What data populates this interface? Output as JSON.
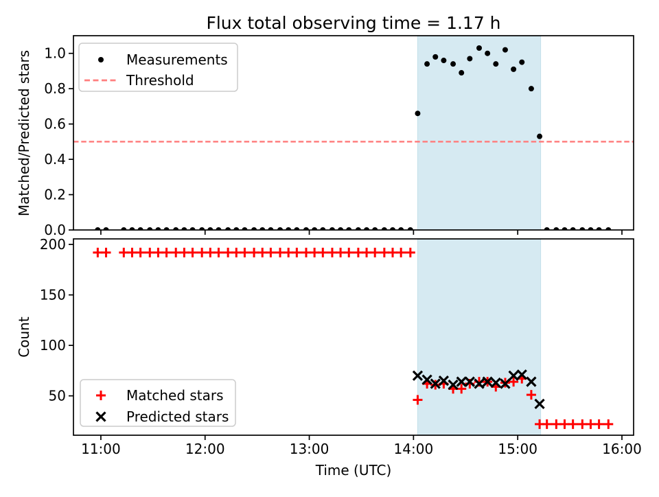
{
  "figure": {
    "title": "Flux total observing time = 1.17 h",
    "background": "#ffffff"
  },
  "colors": {
    "measurements": "#000000",
    "threshold": "#ff7f7f",
    "matched": "#ff0000",
    "predicted": "#000000",
    "shading": "#d6eaf2",
    "shading_edge": "#c3dfea",
    "legend_border": "#cccccc",
    "axes": "#000000"
  },
  "chart_data": [
    {
      "type": "scatter",
      "title": "Flux total observing time = 1.17 h",
      "ylabel": "Matched/Predicted stars",
      "xlim": [
        10.737,
        16.112
      ],
      "ylim": [
        0,
        1.1
      ],
      "yticks": [
        0.0,
        0.2,
        0.4,
        0.6,
        0.8,
        1.0
      ],
      "ytick_labels": [
        "0.0",
        "0.2",
        "0.4",
        "0.6",
        "0.8",
        "1.0"
      ],
      "xticks": [
        11,
        12,
        13,
        14,
        15,
        16
      ],
      "xtick_labels": [],
      "grid": false,
      "shaded_region": {
        "x0": 14.04,
        "x1": 15.22,
        "color": "#d6eaf2"
      },
      "threshold": {
        "y": 0.5,
        "color": "#ff7f7f",
        "style": "dashed"
      },
      "legend": {
        "position": "upper-left",
        "entries": [
          {
            "label": "Measurements",
            "marker": "dot",
            "color": "#000000"
          },
          {
            "label": "Threshold",
            "marker": "dashed-line",
            "color": "#ff7f7f"
          }
        ]
      },
      "series": [
        {
          "name": "Measurements",
          "marker": "dot",
          "color": "#000000",
          "x": [
            10.97,
            11.05,
            11.22,
            11.3,
            11.38,
            11.47,
            11.55,
            11.63,
            11.72,
            11.8,
            11.88,
            11.97,
            12.05,
            12.13,
            12.22,
            12.3,
            12.38,
            12.47,
            12.55,
            12.63,
            12.72,
            12.8,
            12.88,
            12.97,
            13.05,
            13.13,
            13.22,
            13.3,
            13.38,
            13.47,
            13.55,
            13.63,
            13.72,
            13.8,
            13.88,
            13.97,
            14.04,
            14.13,
            14.21,
            14.29,
            14.38,
            14.46,
            14.54,
            14.63,
            14.71,
            14.79,
            14.88,
            14.96,
            15.04,
            15.13,
            15.21,
            15.28,
            15.37,
            15.45,
            15.53,
            15.62,
            15.7,
            15.78,
            15.87
          ],
          "y": [
            0.0,
            0.0,
            0.0,
            0.0,
            0.0,
            0.0,
            0.0,
            0.0,
            0.0,
            0.0,
            0.0,
            0.0,
            0.0,
            0.0,
            0.0,
            0.0,
            0.0,
            0.0,
            0.0,
            0.0,
            0.0,
            0.0,
            0.0,
            0.0,
            0.0,
            0.0,
            0.0,
            0.0,
            0.0,
            0.0,
            0.0,
            0.0,
            0.0,
            0.0,
            0.0,
            0.0,
            0.66,
            0.94,
            0.98,
            0.96,
            0.94,
            0.89,
            0.97,
            1.03,
            1.0,
            0.94,
            1.02,
            0.91,
            0.95,
            0.8,
            0.53,
            0.0,
            0.0,
            0.0,
            0.0,
            0.0,
            0.0,
            0.0,
            0.0
          ]
        }
      ]
    },
    {
      "type": "scatter",
      "xlabel": "Time (UTC)",
      "ylabel": "Count",
      "xlim": [
        10.737,
        16.112
      ],
      "ylim": [
        11,
        205.5
      ],
      "yticks": [
        50,
        100,
        150,
        200
      ],
      "ytick_labels": [
        "50",
        "100",
        "150",
        "200"
      ],
      "xticks": [
        11,
        12,
        13,
        14,
        15,
        16
      ],
      "xtick_labels": [
        "11:00",
        "12:00",
        "13:00",
        "14:00",
        "15:00",
        "16:00"
      ],
      "grid": false,
      "shaded_region": {
        "x0": 14.04,
        "x1": 15.22,
        "color": "#d6eaf2"
      },
      "legend": {
        "position": "lower-left",
        "entries": [
          {
            "label": "Matched stars",
            "marker": "plus",
            "color": "#ff0000"
          },
          {
            "label": "Predicted stars",
            "marker": "x",
            "color": "#000000"
          }
        ]
      },
      "series": [
        {
          "name": "Matched stars",
          "marker": "plus",
          "color": "#ff0000",
          "x": [
            10.97,
            11.05,
            11.22,
            11.3,
            11.38,
            11.47,
            11.55,
            11.63,
            11.72,
            11.8,
            11.88,
            11.97,
            12.05,
            12.13,
            12.22,
            12.3,
            12.38,
            12.47,
            12.55,
            12.63,
            12.72,
            12.8,
            12.88,
            12.97,
            13.05,
            13.13,
            13.22,
            13.3,
            13.38,
            13.47,
            13.55,
            13.63,
            13.72,
            13.8,
            13.88,
            13.97,
            14.04,
            14.13,
            14.21,
            14.29,
            14.38,
            14.46,
            14.54,
            14.63,
            14.71,
            14.79,
            14.88,
            14.96,
            15.04,
            15.13,
            15.21,
            15.28,
            15.37,
            15.45,
            15.53,
            15.62,
            15.7,
            15.78,
            15.87
          ],
          "y": [
            192,
            192,
            192,
            192,
            192,
            192,
            192,
            192,
            192,
            192,
            192,
            192,
            192,
            192,
            192,
            192,
            192,
            192,
            192,
            192,
            192,
            192,
            192,
            192,
            192,
            192,
            192,
            192,
            192,
            192,
            192,
            192,
            192,
            192,
            192,
            192,
            46,
            62,
            61,
            62,
            57,
            57,
            62,
            64,
            64,
            59,
            63,
            64,
            67,
            51,
            22,
            22,
            22,
            22,
            22,
            22,
            22,
            22,
            22
          ]
        },
        {
          "name": "Predicted stars",
          "marker": "x",
          "color": "#000000",
          "x": [
            14.04,
            14.13,
            14.21,
            14.29,
            14.38,
            14.46,
            14.54,
            14.63,
            14.71,
            14.79,
            14.88,
            14.96,
            15.04,
            15.13,
            15.21
          ],
          "y": [
            70,
            66,
            62,
            65,
            61,
            64,
            64,
            62,
            64,
            63,
            62,
            70,
            71,
            64,
            42
          ]
        }
      ]
    }
  ]
}
